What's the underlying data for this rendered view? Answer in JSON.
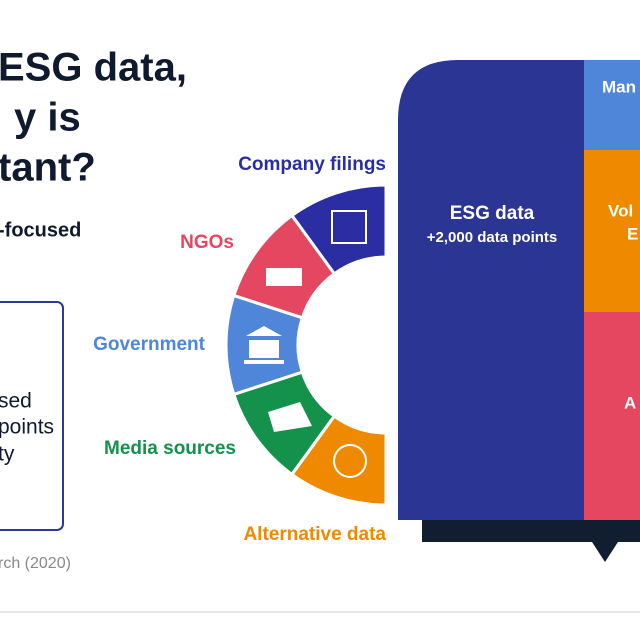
{
  "header": {
    "title_lines": [
      "ESG data,",
      "y is",
      "tant?"
    ],
    "subtitle": "-focused"
  },
  "callout": {
    "lines": [
      "sed",
      "points",
      "ty"
    ]
  },
  "source": "rch (2020)",
  "segments": [
    {
      "label": "Company filings",
      "color": "#2b2ea3"
    },
    {
      "label": "NGOs",
      "color": "#e4475f"
    },
    {
      "label": "Government",
      "color": "#4f86d9"
    },
    {
      "label": "Media sources",
      "color": "#14914b"
    },
    {
      "label": "Alternative data",
      "color": "#ef8a00"
    }
  ],
  "panel": {
    "title": "ESG data",
    "subtitle": "+2,000 data points",
    "columns": [
      {
        "lines": [
          "Man"
        ]
      },
      {
        "lines": [
          "Vol",
          "E"
        ]
      },
      {
        "lines": [
          "A"
        ]
      }
    ]
  }
}
